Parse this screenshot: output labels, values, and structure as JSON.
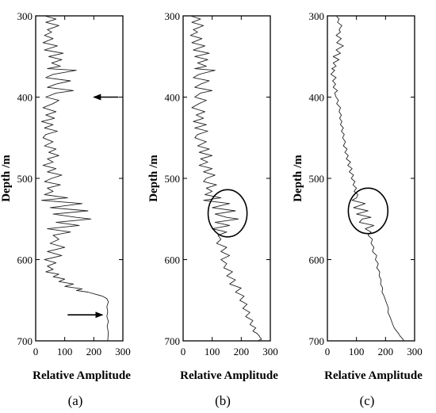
{
  "chart_data": [
    {
      "type": "line",
      "panel_label": "(a)",
      "xlabel": "Relative Amplitude",
      "ylabel": "Depth /m",
      "xlim": [
        0,
        300
      ],
      "ylim": [
        300,
        700
      ],
      "y_inverted": true,
      "xticks": [
        "0",
        "100",
        "200",
        "300"
      ],
      "yticks": [
        "300",
        "400",
        "500",
        "600",
        "700"
      ],
      "series": [
        {
          "x": [
            30,
            70,
            35,
            80,
            40,
            55,
            30,
            60,
            25,
            75,
            30,
            95,
            45,
            90,
            55,
            85,
            40,
            140,
            60,
            35,
            120,
            70,
            40,
            130,
            70,
            35,
            80,
            60,
            25,
            70,
            35,
            65,
            20,
            60,
            30,
            75,
            35,
            25,
            60,
            30,
            70,
            45,
            80,
            40,
            60,
            25,
            70,
            40,
            90,
            55,
            30,
            85,
            40,
            60,
            30,
            110,
            20,
            160,
            50,
            180,
            60,
            140,
            190,
            70,
            150,
            40,
            120,
            60,
            80,
            50,
            100,
            40,
            90,
            30,
            70,
            40,
            60,
            35,
            80,
            60,
            100,
            80,
            130,
            100,
            160,
            140,
            180,
            200,
            230,
            245,
            250,
            245,
            248,
            245,
            250,
            246,
            250,
            248
          ],
          "y": [
            300,
            304,
            308,
            312,
            317,
            320,
            324,
            328,
            333,
            337,
            342,
            346,
            350,
            354,
            358,
            362,
            365,
            367,
            372,
            376,
            380,
            384,
            388,
            392,
            395,
            400,
            404,
            408,
            413,
            418,
            422,
            426,
            430,
            434,
            438,
            442,
            446,
            450,
            455,
            460,
            464,
            468,
            472,
            476,
            480,
            484,
            488,
            492,
            496,
            500,
            504,
            508,
            512,
            516,
            520,
            524,
            527,
            531,
            536,
            540,
            544,
            548,
            550,
            554,
            558,
            562,
            566,
            570,
            575,
            580,
            585,
            590,
            595,
            600,
            604,
            608,
            612,
            615,
            618,
            621,
            624,
            627,
            630,
            633,
            636,
            638,
            640,
            642,
            645,
            648,
            652,
            658,
            664,
            670,
            676,
            682,
            690,
            700
          ]
        }
      ],
      "annotations": [
        {
          "kind": "arrow",
          "direction": "left",
          "from": [
            285,
            400
          ],
          "to": [
            200,
            400
          ]
        },
        {
          "kind": "arrow",
          "direction": "right",
          "from": [
            110,
            668
          ],
          "to": [
            230,
            668
          ]
        }
      ]
    },
    {
      "type": "line",
      "panel_label": "(b)",
      "xlabel": "Relative Amplitude",
      "ylabel": "Depth /m",
      "xlim": [
        0,
        300
      ],
      "ylim": [
        300,
        700
      ],
      "y_inverted": true,
      "xticks": [
        "0",
        "100",
        "200",
        "300"
      ],
      "yticks": [
        "300",
        "400",
        "500",
        "600",
        "700"
      ],
      "series": [
        {
          "x": [
            25,
            60,
            30,
            70,
            35,
            50,
            25,
            65,
            30,
            75,
            35,
            90,
            40,
            85,
            50,
            80,
            40,
            110,
            55,
            35,
            90,
            60,
            40,
            100,
            60,
            40,
            80,
            55,
            30,
            75,
            45,
            70,
            35,
            80,
            40,
            85,
            50,
            40,
            80,
            50,
            90,
            55,
            100,
            60,
            85,
            55,
            100,
            70,
            110,
            80,
            70,
            115,
            80,
            100,
            75,
            130,
            70,
            160,
            100,
            180,
            110,
            150,
            190,
            110,
            160,
            100,
            150,
            120,
            130,
            115,
            150,
            130,
            160,
            130,
            150,
            140,
            170,
            150,
            180,
            160,
            200,
            180,
            210,
            195,
            220,
            205,
            230,
            215,
            240,
            230,
            250,
            240,
            255,
            262,
            265,
            270,
            262,
            258
          ],
          "y": [
            300,
            304,
            308,
            312,
            317,
            320,
            324,
            328,
            333,
            337,
            342,
            346,
            350,
            354,
            358,
            362,
            365,
            367,
            372,
            376,
            380,
            384,
            388,
            392,
            395,
            400,
            404,
            408,
            413,
            418,
            422,
            426,
            430,
            434,
            438,
            442,
            446,
            450,
            455,
            460,
            464,
            468,
            472,
            476,
            480,
            484,
            488,
            492,
            496,
            500,
            504,
            508,
            512,
            516,
            520,
            524,
            527,
            531,
            536,
            540,
            544,
            548,
            550,
            554,
            558,
            562,
            566,
            570,
            575,
            580,
            585,
            590,
            595,
            600,
            605,
            610,
            615,
            620,
            625,
            630,
            635,
            640,
            645,
            650,
            655,
            660,
            665,
            670,
            675,
            680,
            684,
            688,
            691,
            694,
            696,
            698,
            699,
            700
          ]
        }
      ],
      "annotations": [
        {
          "kind": "ellipse",
          "center": [
            153,
            543
          ],
          "rx": 67,
          "ry": 29
        }
      ]
    },
    {
      "type": "line",
      "panel_label": "(c)",
      "xlabel": "Relative Amplitude",
      "ylabel": "Depth /m",
      "xlim": [
        0,
        300
      ],
      "ylim": [
        300,
        700
      ],
      "y_inverted": true,
      "xticks": [
        "0",
        "100",
        "200",
        "300"
      ],
      "yticks": [
        "300",
        "400",
        "500",
        "600",
        "700"
      ],
      "series": [
        {
          "x": [
            30,
            40,
            35,
            50,
            40,
            45,
            30,
            48,
            32,
            55,
            30,
            45,
            20,
            40,
            20,
            30,
            15,
            25,
            12,
            30,
            18,
            28,
            20,
            35,
            25,
            30,
            38,
            32,
            45,
            40,
            48,
            42,
            50,
            45,
            55,
            48,
            58,
            52,
            62,
            55,
            68,
            60,
            72,
            65,
            80,
            70,
            85,
            75,
            90,
            82,
            95,
            88,
            100,
            92,
            105,
            100,
            85,
            130,
            90,
            140,
            100,
            150,
            120,
            110,
            160,
            130,
            150,
            140,
            155,
            150,
            160,
            155,
            170,
            165,
            175,
            170,
            180,
            178,
            185,
            183,
            190,
            188,
            195,
            200,
            205,
            210,
            208,
            215,
            220,
            225,
            230,
            238,
            245,
            250,
            255,
            260,
            262,
            258
          ],
          "y": [
            300,
            304,
            308,
            312,
            317,
            320,
            324,
            328,
            333,
            337,
            342,
            346,
            350,
            354,
            358,
            362,
            365,
            367,
            372,
            376,
            380,
            384,
            388,
            392,
            395,
            400,
            404,
            408,
            413,
            418,
            422,
            426,
            430,
            434,
            438,
            442,
            446,
            450,
            455,
            460,
            464,
            468,
            472,
            476,
            480,
            484,
            488,
            492,
            496,
            500,
            504,
            508,
            512,
            516,
            520,
            524,
            527,
            531,
            536,
            540,
            544,
            548,
            550,
            554,
            558,
            562,
            566,
            570,
            575,
            580,
            585,
            590,
            595,
            600,
            605,
            610,
            615,
            620,
            625,
            630,
            635,
            640,
            645,
            650,
            655,
            660,
            665,
            670,
            675,
            680,
            684,
            688,
            691,
            694,
            696,
            698,
            699,
            700
          ]
        }
      ],
      "annotations": [
        {
          "kind": "ellipse",
          "center": [
            140,
            540
          ],
          "rx": 68,
          "ry": 28
        }
      ]
    }
  ]
}
